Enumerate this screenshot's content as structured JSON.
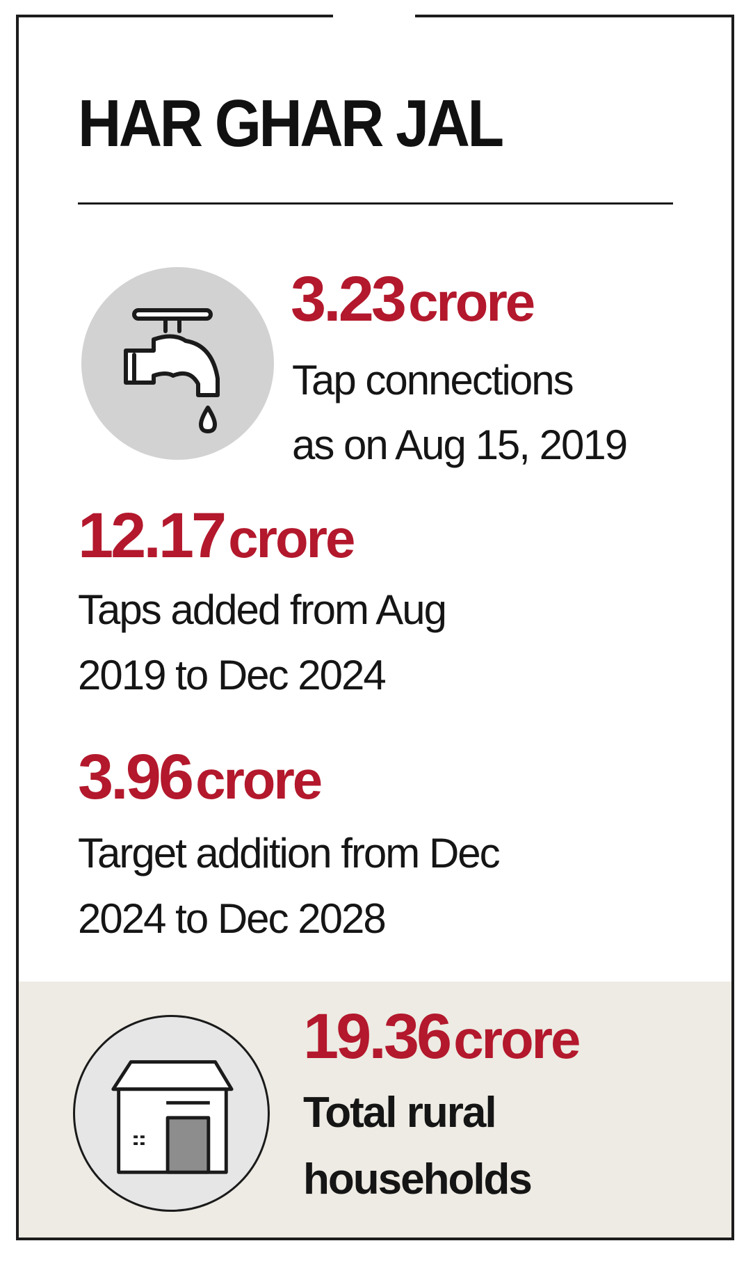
{
  "title": "HAR GHAR JAL",
  "stats": [
    {
      "value": "3.23",
      "unit": "crore",
      "line1": "Tap connections",
      "line2": "as on Aug 15, 2019",
      "icon": "tap-icon"
    },
    {
      "value": "12.17",
      "unit": "crore",
      "line1": "Taps added from Aug",
      "line2": "2019 to Dec 2024"
    },
    {
      "value": "3.96",
      "unit": "crore",
      "line1": "Target addition from Dec",
      "line2": "2024 to Dec 2028"
    },
    {
      "value": "19.36",
      "unit": "crore",
      "line1": "Total rural",
      "line2": "households",
      "icon": "house-icon"
    }
  ],
  "colors": {
    "accent": "#b3182c",
    "text": "#151515",
    "tap_circle": "#d2d2d2",
    "band": "#edebe3"
  }
}
